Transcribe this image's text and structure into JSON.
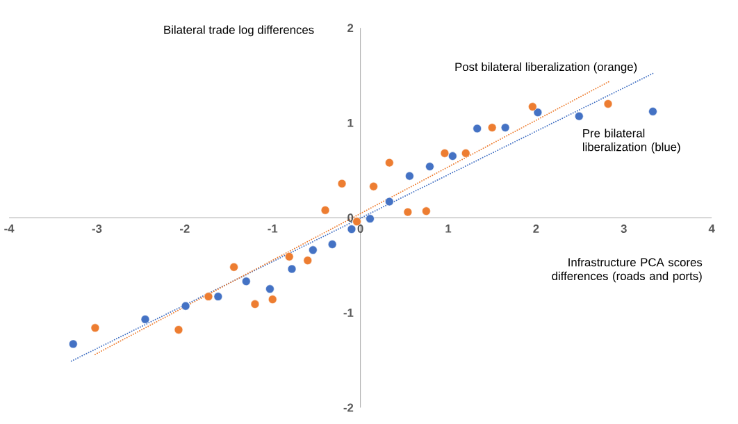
{
  "chart_data": {
    "type": "scatter",
    "ylabel": "Bilateral trade log differences",
    "xlabel": "Infrastructure PCA scores differences (roads and ports)",
    "xlim": [
      -4,
      4
    ],
    "ylim": [
      -2,
      2
    ],
    "xticks": [
      -4,
      -3,
      -2,
      -1,
      0,
      1,
      2,
      3,
      4
    ],
    "yticks": [
      -2,
      -1,
      0,
      1,
      2
    ],
    "marker": "circle",
    "series": [
      {
        "color": "#4472c4",
        "x": [
          -3.27,
          -2.45,
          -1.99,
          -1.62,
          -1.3,
          -1.03,
          -0.78,
          -0.54,
          -0.32,
          -0.1,
          0.11,
          0.33,
          0.56,
          0.79,
          1.05,
          1.33,
          1.65,
          2.02,
          2.49,
          3.33
        ],
        "values": [
          -1.33,
          -1.07,
          -0.93,
          -0.83,
          -0.67,
          -0.75,
          -0.54,
          -0.34,
          -0.28,
          -0.12,
          -0.01,
          0.17,
          0.44,
          0.54,
          0.65,
          0.94,
          0.95,
          1.11,
          1.07,
          1.12
        ]
      },
      {
        "color": "#ed7d31",
        "x": [
          -3.02,
          -2.07,
          -1.73,
          -1.44,
          -1.2,
          -1.0,
          -0.81,
          -0.6,
          -0.4,
          -0.21,
          -0.04,
          0.15,
          0.33,
          0.54,
          0.75,
          0.96,
          1.2,
          1.5,
          1.96,
          2.82
        ],
        "values": [
          -1.16,
          -1.18,
          -0.83,
          -0.52,
          -0.91,
          -0.86,
          -0.41,
          -0.45,
          0.08,
          0.36,
          -0.04,
          0.33,
          0.58,
          0.06,
          0.07,
          0.68,
          0.68,
          0.95,
          1.17,
          1.2
        ]
      },
      {
        "name": "Pre bilateral liberalization  (blue)",
        "type": "line",
        "line_style": "dotted",
        "marker": "none",
        "color": "#4472c4",
        "x": [
          -3.29,
          3.33
        ],
        "values": [
          -1.51,
          1.52
        ]
      },
      {
        "name": "Post bilateral liberalization  (orange)",
        "type": "line",
        "line_style": "dotted",
        "marker": "none",
        "color": "#ed7d31",
        "x": [
          -3.02,
          2.84
        ],
        "values": [
          -1.44,
          1.44
        ]
      }
    ]
  }
}
